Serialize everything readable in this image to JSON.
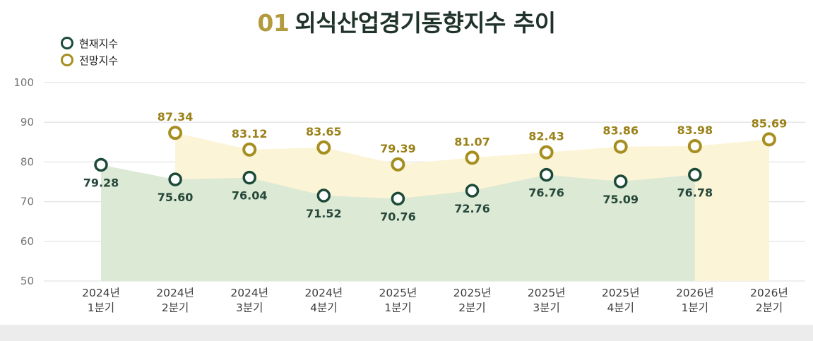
{
  "title": {
    "number": "01",
    "text": "외식산업경기동향지수 추이"
  },
  "legend": [
    {
      "label": "현재지수",
      "color": "#1c4a39"
    },
    {
      "label": "전망지수",
      "color": "#a68e1f"
    }
  ],
  "chart_data": {
    "type": "line",
    "title": "01 외식산업경기동향지수 추이",
    "categories": [
      [
        "2024년",
        "1분기"
      ],
      [
        "2024년",
        "2분기"
      ],
      [
        "2024년",
        "3분기"
      ],
      [
        "2024년",
        "4분기"
      ],
      [
        "2025년",
        "1분기"
      ],
      [
        "2025년",
        "2분기"
      ],
      [
        "2025년",
        "3분기"
      ],
      [
        "2025년",
        "4분기"
      ],
      [
        "2026년",
        "1분기"
      ],
      [
        "2026년",
        "2분기"
      ]
    ],
    "series": [
      {
        "name": "현재지수",
        "values": [
          79.28,
          75.6,
          76.04,
          71.52,
          70.76,
          72.76,
          76.76,
          75.09,
          76.78,
          null
        ],
        "labels": [
          "79.28",
          "75.60",
          "76.04",
          "71.52",
          "70.76",
          "72.76",
          "76.76",
          "75.09",
          "76.78",
          null
        ],
        "color": "#1c4a39",
        "area_color": "#dce9d5",
        "label_color": "#26483a",
        "label_position": "below",
        "marker_stroke": 3.5
      },
      {
        "name": "전망지수",
        "values": [
          null,
          87.34,
          83.12,
          83.65,
          79.39,
          81.07,
          82.43,
          83.86,
          83.98,
          85.69
        ],
        "labels": [
          null,
          "87.34",
          "83.12",
          "83.65",
          "79.39",
          "81.07",
          "82.43",
          "83.86",
          "83.98",
          "85.69"
        ],
        "color": "#a68e1f",
        "area_color": "#fcf4d6",
        "label_color": "#9a8118",
        "label_position": "above",
        "marker_stroke": 4
      }
    ],
    "ylim": [
      50,
      100
    ],
    "yticks": [
      50,
      60,
      70,
      80,
      90,
      100
    ],
    "baseline": 50,
    "grid": true,
    "legend_position": "top-left"
  }
}
